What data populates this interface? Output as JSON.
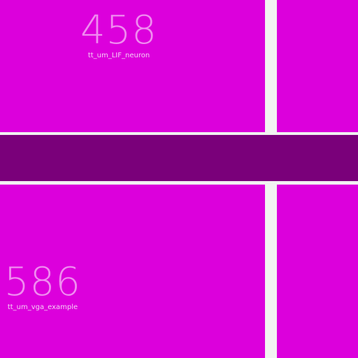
{
  "tiles": [
    {
      "id": "top-left",
      "number": "458",
      "name": "tt_um_LIF_neuron"
    },
    {
      "id": "top-right",
      "number": "",
      "name": ""
    },
    {
      "id": "band",
      "number": "",
      "name": ""
    },
    {
      "id": "bottom-left",
      "number": "586",
      "name": "tt_um_vga_example"
    },
    {
      "id": "bottom-right",
      "number": "",
      "name": ""
    }
  ],
  "colors": {
    "tile": "#dc00dc",
    "band": "#7a007a",
    "gap": "#f2f2f2",
    "label": "#f08cf0"
  }
}
